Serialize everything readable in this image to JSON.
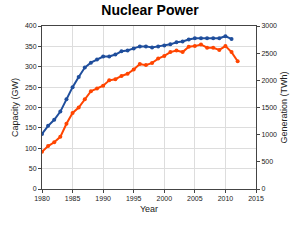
{
  "chart_data": {
    "type": "line",
    "title": "Nuclear Power",
    "x_label": "Year",
    "y_label": "Capacity (GW)",
    "y2_label": "Generation (TWh)",
    "x": [
      1980,
      1981,
      1982,
      1983,
      1984,
      1985,
      1986,
      1987,
      1988,
      1989,
      1990,
      1991,
      1992,
      1993,
      1994,
      1995,
      1996,
      1997,
      1998,
      1999,
      2000,
      2001,
      2002,
      2003,
      2004,
      2005,
      2006,
      2007,
      2008,
      2009,
      2010,
      2011,
      2012
    ],
    "series": [
      {
        "name": "Capacity (GW)",
        "color": "#1f4e9c",
        "marker": "circle",
        "values": [
          135,
          155,
          170,
          190,
          220,
          250,
          275,
          298,
          310,
          318,
          325,
          325,
          330,
          338,
          340,
          345,
          350,
          350,
          347,
          350,
          352,
          355,
          360,
          362,
          367,
          370,
          370,
          370,
          370,
          370,
          375,
          368,
          null
        ]
      },
      {
        "name": "Generation (TWh)",
        "color": "#ff4500",
        "marker": "circle",
        "axis": "y2",
        "values": [
          684,
          790,
          860,
          960,
          1200,
          1400,
          1500,
          1650,
          1800,
          1850,
          1900,
          2000,
          2020,
          2080,
          2120,
          2200,
          2300,
          2280,
          2320,
          2400,
          2450,
          2520,
          2550,
          2520,
          2620,
          2630,
          2660,
          2600,
          2600,
          2560,
          2630,
          2520,
          2350
        ]
      }
    ],
    "xlim": [
      1980,
      2015
    ],
    "xticks": [
      1980,
      1985,
      1990,
      1995,
      2000,
      2005,
      2010,
      2015
    ],
    "ylim": [
      0,
      400
    ],
    "yticks": [
      0,
      50,
      100,
      150,
      200,
      250,
      300,
      350,
      400
    ],
    "y2lim": [
      0,
      3000
    ],
    "y2ticks": [
      0,
      500,
      1000,
      1500,
      2000,
      2500,
      3000
    ],
    "grid": true
  }
}
